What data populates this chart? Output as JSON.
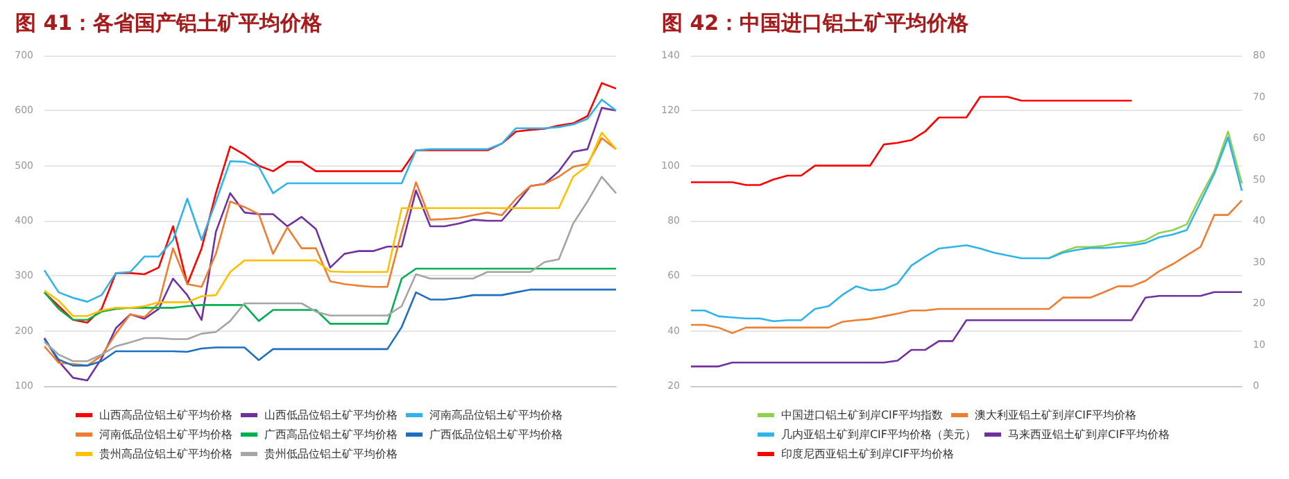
{
  "chart_data": [
    {
      "type": "line",
      "title": "图 41：各省国产铝土矿平均价格",
      "categories": [
        null,
        null,
        null,
        null,
        null,
        null,
        null,
        null,
        null,
        null,
        null,
        null,
        null,
        null,
        null,
        null,
        null,
        null,
        null,
        null,
        null,
        null,
        null,
        null,
        null,
        null,
        null,
        null,
        null,
        null,
        null,
        null,
        null,
        null,
        null,
        null,
        null,
        null,
        null,
        null,
        null
      ],
      "series": [
        {
          "name": "山西高品位铝土矿平均价格",
          "color": "#ff0000",
          "values": [
            270,
            245,
            220,
            215,
            240,
            305,
            305,
            303,
            315,
            390,
            285,
            350,
            450,
            535,
            520,
            500,
            490,
            507,
            507,
            490,
            490,
            490,
            490,
            490,
            490,
            490,
            528,
            528,
            528,
            528,
            528,
            528,
            540,
            562,
            565,
            567,
            573,
            577,
            590,
            650,
            640
          ]
        },
        {
          "name": "山西低品位铝土矿平均价格",
          "color": "#7030a0",
          "values": [
            187,
            145,
            115,
            110,
            150,
            205,
            230,
            222,
            240,
            295,
            265,
            220,
            380,
            450,
            415,
            412,
            412,
            390,
            407,
            385,
            315,
            340,
            345,
            345,
            353,
            353,
            455,
            390,
            390,
            395,
            402,
            400,
            400,
            430,
            463,
            467,
            490,
            525,
            530,
            605,
            600
          ]
        },
        {
          "name": "河南高品位铝土矿平均价格",
          "color": "#2eb4e8",
          "values": [
            310,
            270,
            260,
            253,
            265,
            305,
            307,
            335,
            335,
            365,
            440,
            365,
            435,
            508,
            507,
            498,
            450,
            468,
            468,
            468,
            468,
            468,
            468,
            468,
            468,
            468,
            528,
            530,
            530,
            530,
            530,
            530,
            540,
            568,
            568,
            568,
            570,
            575,
            585,
            620,
            600
          ]
        },
        {
          "name": "河南低品位铝土矿平均价格",
          "color": "#ed7d31",
          "values": [
            172,
            142,
            140,
            137,
            155,
            195,
            230,
            225,
            250,
            350,
            285,
            280,
            340,
            435,
            425,
            412,
            340,
            388,
            350,
            350,
            290,
            285,
            282,
            280,
            280,
            380,
            470,
            402,
            403,
            405,
            410,
            415,
            410,
            440,
            463,
            467,
            480,
            498,
            503,
            550,
            530
          ]
        },
        {
          "name": "广西高品位铝土矿平均价格",
          "color": "#00b050",
          "values": [
            270,
            240,
            220,
            220,
            235,
            240,
            242,
            242,
            242,
            242,
            245,
            247,
            247,
            247,
            247,
            218,
            238,
            238,
            238,
            238,
            213,
            213,
            213,
            213,
            213,
            295,
            313,
            313,
            313,
            313,
            313,
            313,
            313,
            313,
            313,
            313,
            313,
            313,
            313,
            313,
            313
          ]
        },
        {
          "name": "广西低品位铝土矿平均价格",
          "color": "#1f6fc0",
          "values": [
            185,
            148,
            137,
            137,
            145,
            163,
            163,
            163,
            163,
            163,
            162,
            168,
            170,
            170,
            170,
            147,
            167,
            167,
            167,
            167,
            167,
            167,
            167,
            167,
            167,
            207,
            270,
            257,
            257,
            260,
            265,
            265,
            265,
            270,
            275,
            275,
            275,
            275,
            275,
            275,
            275
          ]
        },
        {
          "name": "贵州高品位铝土矿平均价格",
          "color": "#ffc000",
          "values": [
            273,
            255,
            227,
            227,
            237,
            242,
            242,
            245,
            252,
            252,
            252,
            263,
            265,
            307,
            328,
            328,
            328,
            328,
            328,
            328,
            308,
            307,
            307,
            307,
            307,
            423,
            423,
            423,
            423,
            423,
            423,
            423,
            423,
            423,
            423,
            423,
            423,
            480,
            500,
            560,
            530
          ]
        },
        {
          "name": "贵州低品位铝土矿平均价格",
          "color": "#a5a5a5",
          "values": [
            180,
            157,
            145,
            145,
            157,
            172,
            179,
            187,
            187,
            185,
            185,
            195,
            198,
            218,
            250,
            250,
            250,
            250,
            250,
            235,
            228,
            228,
            228,
            228,
            228,
            245,
            303,
            295,
            295,
            295,
            295,
            307,
            307,
            307,
            307,
            325,
            330,
            395,
            435,
            480,
            450
          ]
        }
      ],
      "ylim": [
        100,
        700
      ],
      "yticks": [
        100,
        200,
        300,
        400,
        500,
        600,
        700
      ],
      "grid": "y",
      "legend": "bottom",
      "marker": "none"
    },
    {
      "type": "line",
      "title": "图 42：中国进口铝土矿平均价格",
      "categories": [
        null,
        null,
        null,
        null,
        null,
        null,
        null,
        null,
        null,
        null,
        null,
        null,
        null,
        null,
        null,
        null,
        null,
        null,
        null,
        null,
        null,
        null,
        null,
        null,
        null,
        null,
        null,
        null,
        null,
        null,
        null,
        null,
        null,
        null,
        null,
        null,
        null,
        null,
        null,
        null,
        null
      ],
      "series": [
        {
          "name": "中国进口铝土矿到岸CIF平均指数",
          "color": "#92d050",
          "values": [
            null,
            null,
            null,
            null,
            null,
            null,
            null,
            null,
            null,
            null,
            null,
            null,
            null,
            null,
            null,
            null,
            null,
            null,
            null,
            null,
            null,
            null,
            null,
            null,
            null,
            null,
            66.4,
            68.8,
            70.5,
            70.5,
            70.9,
            71.9,
            71.9,
            72.9,
            75.6,
            76.6,
            78.7,
            88.8,
            98.1,
            112.4,
            93.6
          ]
        },
        {
          "name": "澳大利亚铝土矿到岸CIF平均价格",
          "color": "#ed7d31",
          "values": [
            42.2,
            42.2,
            41.2,
            39.2,
            41.2,
            41.2,
            41.2,
            41.2,
            41.2,
            41.2,
            41.2,
            43.3,
            43.9,
            44.3,
            45.3,
            46.3,
            47.4,
            47.4,
            48,
            48,
            48,
            48,
            48,
            48,
            48,
            48,
            48,
            52.1,
            52.1,
            52.1,
            54.1,
            56.2,
            56.2,
            58.2,
            61.7,
            64.3,
            67.4,
            70.5,
            82.1,
            82.1,
            87.4
          ]
        },
        {
          "name": "几内亚铝土矿到岸CIF平均价格（美元）",
          "color": "#2eb4e8",
          "values": [
            47.4,
            47.4,
            45.3,
            44.9,
            44.5,
            44.5,
            43.5,
            43.9,
            43.9,
            48,
            49,
            53.1,
            56.2,
            54.7,
            55.1,
            57.2,
            63.7,
            67,
            69.9,
            70.5,
            71.1,
            69.9,
            68.4,
            67.4,
            66.4,
            66.4,
            66.4,
            68.4,
            69.4,
            70.1,
            70.1,
            70.5,
            71.1,
            71.9,
            74,
            75,
            76.6,
            86.8,
            97.1,
            110.3,
            90.9
          ]
        },
        {
          "name": "马来西亚铝土矿到岸CIF平均价格",
          "color": "#7030a0",
          "values": [
            27.1,
            27.1,
            27.1,
            28.5,
            28.5,
            28.5,
            28.5,
            28.5,
            28.5,
            28.5,
            28.5,
            28.5,
            28.5,
            28.5,
            28.5,
            29.2,
            33.1,
            33.1,
            36.3,
            36.3,
            43.9,
            43.9,
            43.9,
            43.9,
            43.9,
            43.9,
            43.9,
            43.9,
            43.9,
            43.9,
            43.9,
            43.9,
            43.9,
            52.1,
            52.7,
            52.7,
            52.7,
            52.7,
            54.1,
            54.1,
            54.1
          ]
        },
        {
          "name": "印度尼西亚铝土矿到岸CIF平均价格",
          "color": "#ff0000",
          "values": [
            94,
            94,
            94,
            94,
            93,
            93,
            95,
            96.4,
            96.4,
            100,
            100,
            100,
            100,
            100,
            107.7,
            108.3,
            109.3,
            112.4,
            117.5,
            117.5,
            117.5,
            125,
            125,
            125,
            123.6,
            123.6,
            123.6,
            123.6,
            123.6,
            123.6,
            123.6,
            123.6,
            123.6,
            null,
            null,
            null,
            null,
            null,
            null,
            null,
            null
          ]
        }
      ],
      "ylim": [
        20,
        140
      ],
      "yticks": [
        20,
        40,
        60,
        80,
        100,
        120,
        140
      ],
      "y2lim": [
        0,
        80
      ],
      "y2ticks": [
        0,
        10,
        20,
        30,
        40,
        50,
        60,
        70,
        80
      ],
      "grid": "y",
      "legend": "bottom",
      "marker": "none"
    }
  ]
}
